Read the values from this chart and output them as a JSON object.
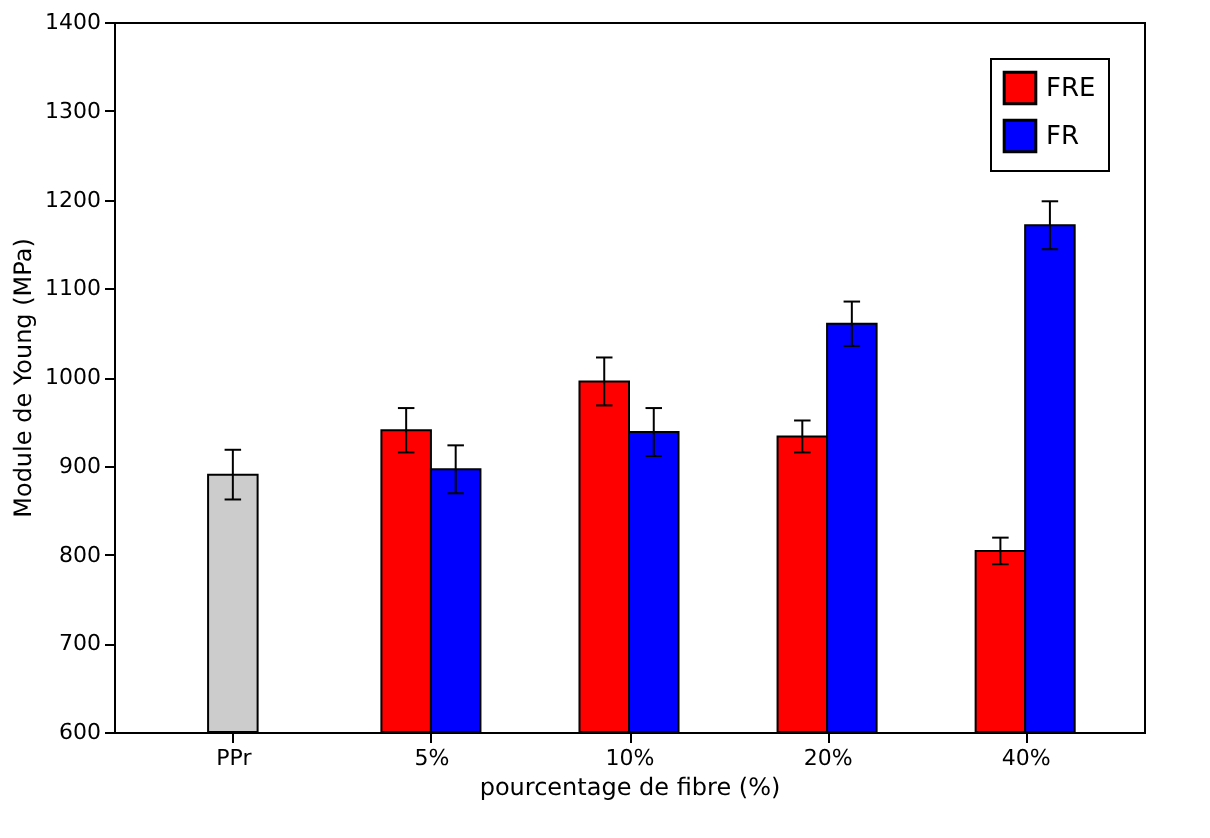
{
  "chart_data": {
    "type": "bar",
    "xlabel": "pourcentage de fibre (%)",
    "ylabel": "Module de Young (MPa)",
    "categories": [
      "PPr",
      "5%",
      "10%",
      "20%",
      "40%"
    ],
    "series": [
      {
        "color": "#cccccc",
        "values": [
          890,
          null,
          null,
          null,
          null
        ],
        "errors": [
          28,
          null,
          null,
          null,
          null
        ]
      },
      {
        "name": "FRE",
        "color": "#ff0000",
        "values": [
          null,
          940,
          995,
          933,
          804
        ],
        "errors": [
          null,
          25,
          27,
          18,
          15
        ]
      },
      {
        "name": "FR",
        "color": "#0000ff",
        "values": [
          null,
          896,
          938,
          1060,
          1171
        ],
        "errors": [
          null,
          27,
          27,
          25,
          27
        ]
      }
    ],
    "ylim": [
      600,
      1400
    ],
    "yticks": [
      600,
      700,
      800,
      900,
      1000,
      1100,
      1200,
      1300,
      1400
    ],
    "grid": false,
    "legend": "top right"
  }
}
